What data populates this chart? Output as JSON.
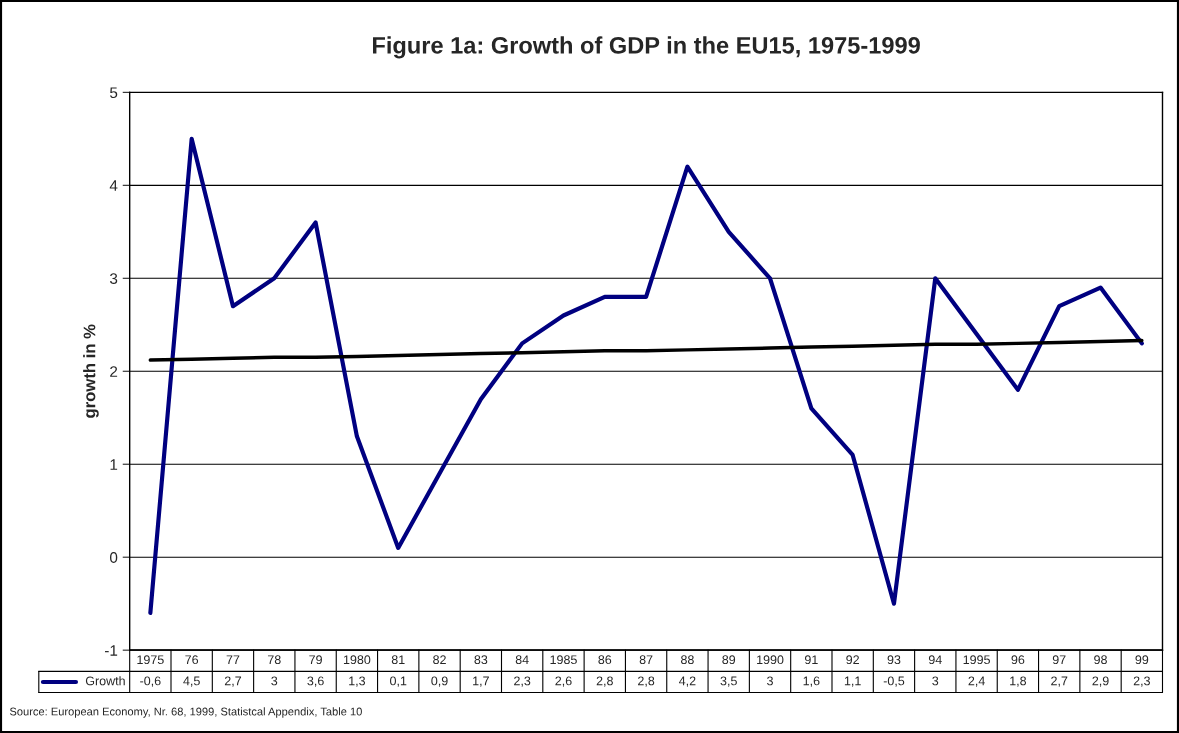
{
  "chart_data": {
    "type": "line",
    "title": "Figure 1a: Growth of GDP in the EU15, 1975-1999",
    "ylabel": "growth in %",
    "categories": [
      "1975",
      "76",
      "77",
      "78",
      "79",
      "1980",
      "81",
      "82",
      "83",
      "84",
      "1985",
      "86",
      "87",
      "88",
      "89",
      "1990",
      "91",
      "92",
      "93",
      "94",
      "1995",
      "96",
      "97",
      "98",
      "99"
    ],
    "series": [
      {
        "name": "Growth",
        "color": "#000080",
        "values": [
          -0.6,
          4.5,
          2.7,
          3,
          3.6,
          1.3,
          0.1,
          0.9,
          1.7,
          2.3,
          2.6,
          2.8,
          2.8,
          4.2,
          3.5,
          3,
          1.6,
          1.1,
          -0.5,
          3,
          2.4,
          1.8,
          2.7,
          2.9,
          2.3
        ],
        "value_labels": [
          "-0,6",
          "4,5",
          "2,7",
          "3",
          "3,6",
          "1,3",
          "0,1",
          "0,9",
          "1,7",
          "2,3",
          "2,6",
          "2,8",
          "2,8",
          "4,2",
          "3,5",
          "3",
          "1,6",
          "1,1",
          "-0,5",
          "3",
          "2,4",
          "1,8",
          "2,7",
          "2,9",
          "2,3"
        ]
      },
      {
        "type": "line",
        "color": "#000000",
        "values": [
          2.12,
          2.13,
          2.14,
          2.15,
          2.15,
          2.16,
          2.17,
          2.18,
          2.19,
          2.2,
          2.21,
          2.22,
          2.22,
          2.23,
          2.24,
          2.25,
          2.26,
          2.27,
          2.28,
          2.29,
          2.29,
          2.3,
          2.31,
          2.32,
          2.33
        ]
      }
    ],
    "ylim": [
      -1,
      5
    ],
    "yticks": [
      -1,
      0,
      1,
      2,
      3,
      4,
      5
    ],
    "grid": "y",
    "legend": "bottom",
    "marker": "none",
    "line_style": "solid",
    "annotations": [
      "Source: European Economy, Nr. 68, 1999, Statistcal Appendix, Table 10"
    ]
  }
}
